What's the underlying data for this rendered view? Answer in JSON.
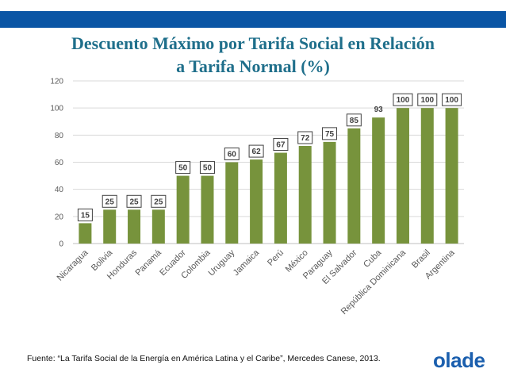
{
  "title_lines": [
    "Descuento Máximo por Tarifa Social en Relación",
    "a Tarifa Normal (%)"
  ],
  "source": "Fuente: “La Tarifa Social de la Energía en América Latina y el Caribe”, Mercedes Canese, 2013.",
  "logo": "olade",
  "colors": {
    "top_bar": "#0a55a5",
    "bar": "#77933c",
    "title": "#1f6f8b",
    "logo": "#1b5fae"
  },
  "chart_data": {
    "type": "bar",
    "title": "Descuento Máximo por Tarifa Social en Relación a Tarifa Normal (%)",
    "xlabel": "",
    "ylabel": "",
    "ylim": [
      0,
      120
    ],
    "yticks": [
      0,
      20,
      40,
      60,
      80,
      100,
      120
    ],
    "grid": true,
    "categories": [
      "Nicaragua",
      "Bolivia",
      "Honduras",
      "Panamá",
      "Ecuador",
      "Colombia",
      "Uruguay",
      "Jamaica",
      "Perú",
      "México",
      "Paraguay",
      "El Salvador",
      "Cuba",
      "República Dominicana",
      "Brasil",
      "Argentina"
    ],
    "values": [
      15,
      25,
      25,
      25,
      50,
      50,
      60,
      62,
      67,
      72,
      75,
      85,
      93,
      100,
      100,
      100
    ],
    "data_labels_boxed": [
      true,
      true,
      true,
      true,
      true,
      true,
      true,
      true,
      true,
      true,
      true,
      true,
      false,
      true,
      true,
      true
    ]
  }
}
